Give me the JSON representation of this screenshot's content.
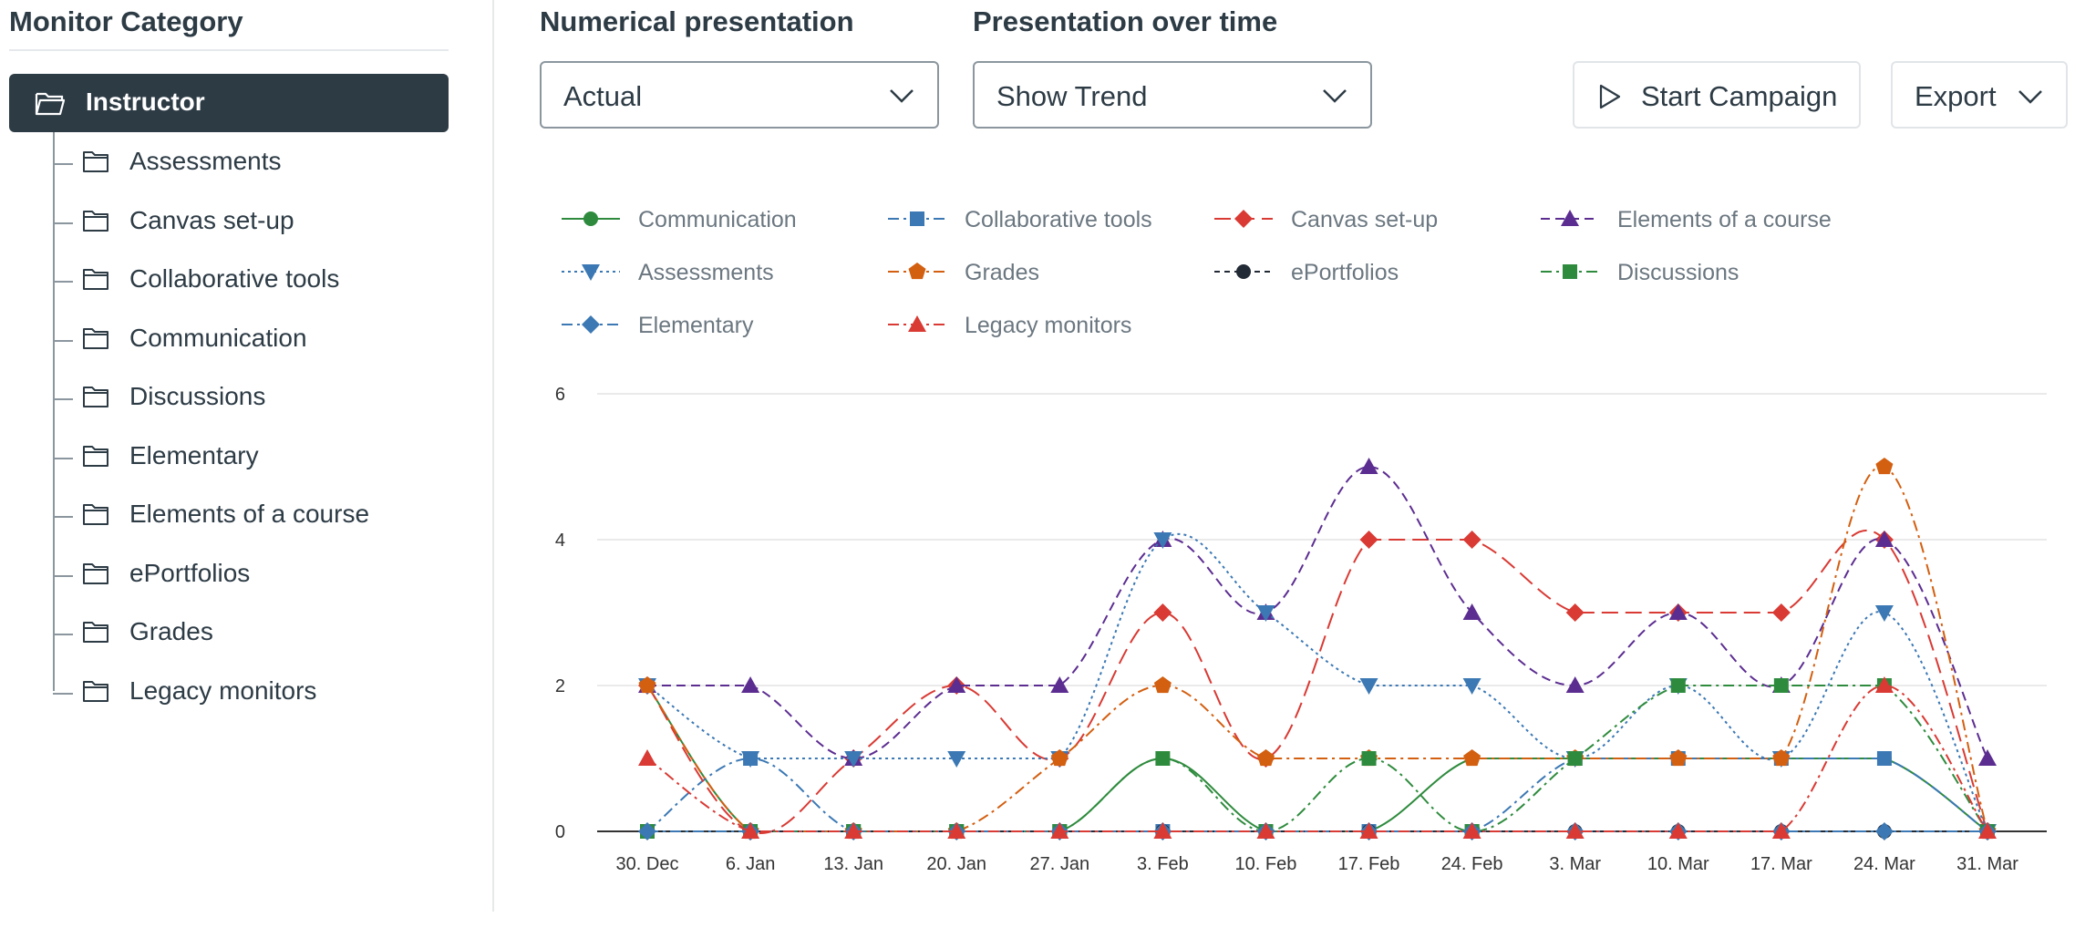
{
  "sidebar": {
    "title": "Monitor Category",
    "root": {
      "label": "Instructor",
      "icon": "folder-open-icon"
    },
    "items": [
      {
        "label": "Assessments",
        "icon": "folder-icon"
      },
      {
        "label": "Canvas set-up",
        "icon": "folder-icon"
      },
      {
        "label": "Collaborative tools",
        "icon": "folder-icon"
      },
      {
        "label": "Communication",
        "icon": "folder-icon"
      },
      {
        "label": "Discussions",
        "icon": "folder-icon"
      },
      {
        "label": "Elementary",
        "icon": "folder-icon"
      },
      {
        "label": "Elements of a course",
        "icon": "folder-icon"
      },
      {
        "label": "ePortfolios",
        "icon": "folder-icon"
      },
      {
        "label": "Grades",
        "icon": "folder-icon"
      },
      {
        "label": "Legacy monitors",
        "icon": "folder-icon"
      }
    ]
  },
  "controls": {
    "numerical": {
      "label": "Numerical presentation",
      "value": "Actual"
    },
    "over_time": {
      "label": "Presentation over time",
      "value": "Show Trend"
    },
    "campaign_button": {
      "label": "Start Campaign",
      "icon": "play-icon"
    },
    "export_button": {
      "label": "Export",
      "icon": "chevron-down-icon"
    }
  },
  "chart_data": {
    "type": "line",
    "title": "",
    "xlabel": "",
    "ylabel": "",
    "categories": [
      "30. Dec",
      "6. Jan",
      "13. Jan",
      "20. Jan",
      "27. Jan",
      "3. Feb",
      "10. Feb",
      "17. Feb",
      "24. Feb",
      "3. Mar",
      "10. Mar",
      "17. Mar",
      "24. Mar",
      "31. Mar"
    ],
    "ylim": [
      0,
      6
    ],
    "yticks": [
      0,
      2,
      4,
      6
    ],
    "grid": true,
    "legend_position": "top",
    "series": [
      {
        "name": "Communication",
        "color": "#2e8b3d",
        "marker": "circle",
        "dash": "solid",
        "values": [
          2,
          0,
          0,
          0,
          0,
          1,
          0,
          0,
          1,
          1,
          1,
          1,
          1,
          0
        ]
      },
      {
        "name": "Collaborative tools",
        "color": "#3b78b4",
        "marker": "square",
        "dash": "dashdot",
        "values": [
          0,
          1,
          0,
          0,
          0,
          0,
          0,
          0,
          0,
          1,
          1,
          1,
          1,
          0
        ]
      },
      {
        "name": "Canvas set-up",
        "color": "#d93a34",
        "marker": "diamond",
        "dash": "longdash",
        "values": [
          2,
          0,
          1,
          2,
          1,
          3,
          1,
          4,
          4,
          3,
          3,
          3,
          4,
          0
        ]
      },
      {
        "name": "Elements of a course",
        "color": "#5c2d91",
        "marker": "triangle",
        "dash": "dash",
        "values": [
          2,
          2,
          1,
          2,
          2,
          4,
          3,
          5,
          3,
          2,
          3,
          2,
          4,
          1
        ]
      },
      {
        "name": "Assessments",
        "color": "#3b78b4",
        "marker": "triangle-down",
        "dash": "dot",
        "values": [
          2,
          1,
          1,
          1,
          1,
          4,
          3,
          2,
          2,
          1,
          2,
          1,
          3,
          0
        ]
      },
      {
        "name": "Grades",
        "color": "#d35f10",
        "marker": "pentagon",
        "dash": "dashdot",
        "values": [
          2,
          0,
          0,
          0,
          1,
          2,
          1,
          1,
          1,
          1,
          1,
          1,
          5,
          0
        ]
      },
      {
        "name": "ePortfolios",
        "color": "#222a35",
        "marker": "circle",
        "dash": "shortdash",
        "values": [
          0,
          0,
          0,
          0,
          0,
          0,
          0,
          0,
          0,
          0,
          0,
          0,
          0,
          0
        ]
      },
      {
        "name": "Discussions",
        "color": "#2e8b3d",
        "marker": "square",
        "dash": "dashdot",
        "values": [
          0,
          0,
          0,
          0,
          0,
          1,
          0,
          1,
          0,
          1,
          2,
          2,
          2,
          0
        ]
      },
      {
        "name": "Elementary",
        "color": "#3b78b4",
        "marker": "diamond",
        "dash": "dashdot",
        "values": [
          0,
          0,
          0,
          0,
          0,
          0,
          0,
          0,
          0,
          0,
          0,
          0,
          0,
          0
        ]
      },
      {
        "name": "Legacy monitors",
        "color": "#d93a34",
        "marker": "triangle",
        "dash": "dashdot",
        "values": [
          1,
          0,
          0,
          0,
          0,
          0,
          0,
          0,
          0,
          0,
          0,
          0,
          2,
          0
        ]
      }
    ]
  }
}
